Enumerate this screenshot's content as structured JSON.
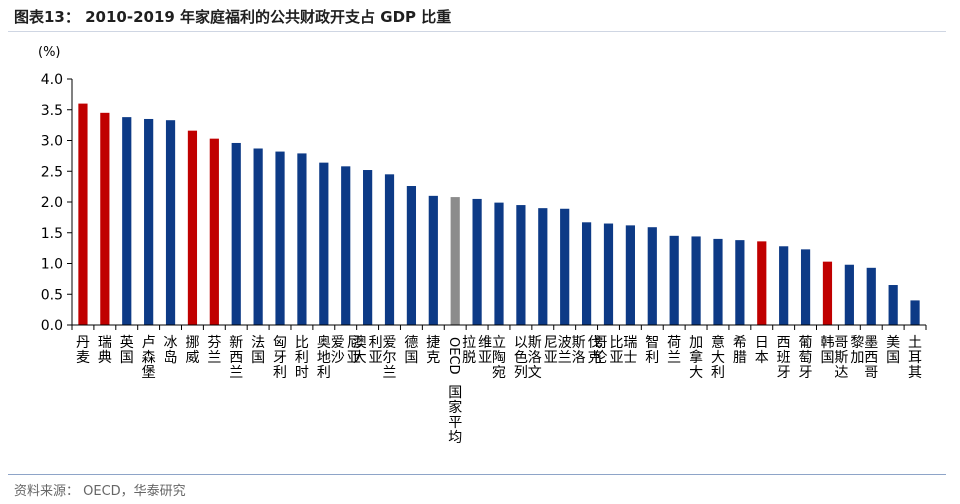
{
  "figure": {
    "title": "图表13： 2010-2019 年家庭福利的公共财政开支占 GDP 比重",
    "source": "资料来源： OECD，华泰研究"
  },
  "colors": {
    "blue": "#0d3a86",
    "red": "#c00000",
    "gray": "#8c8c8c",
    "axis": "#000000"
  },
  "chart_data": {
    "type": "bar",
    "ylabel": "(%)",
    "ylim": [
      0,
      4.0
    ],
    "ytick_step": 0.5,
    "yticks": [
      "0.0",
      "0.5",
      "1.0",
      "1.5",
      "2.0",
      "2.5",
      "3.0",
      "3.5",
      "4.0"
    ],
    "grid": false,
    "categories": [
      "丹麦",
      "瑞典",
      "英国",
      "卢森堡",
      "冰岛",
      "挪威",
      "芬兰",
      "新西兰",
      "法国",
      "匈牙利",
      "比利时",
      "奥地利",
      "爱沙尼亚",
      "澳大利亚",
      "爱尔兰",
      "德国",
      "捷克",
      "OECD国家平均",
      "拉脱维亚",
      "立陶宛",
      "以色列",
      "斯洛文尼亚",
      "波兰",
      "斯洛伐克",
      "哥伦比亚",
      "瑞士",
      "智利",
      "荷兰",
      "加拿大",
      "意大利",
      "希腊",
      "日本",
      "西班牙",
      "葡萄牙",
      "韩国",
      "哥斯达黎加",
      "墨西哥",
      "美国",
      "土耳其"
    ],
    "values": [
      3.6,
      3.45,
      3.38,
      3.35,
      3.33,
      3.16,
      3.03,
      2.96,
      2.87,
      2.82,
      2.79,
      2.64,
      2.58,
      2.52,
      2.45,
      2.26,
      2.1,
      2.08,
      2.05,
      1.99,
      1.95,
      1.9,
      1.89,
      1.67,
      1.65,
      1.62,
      1.59,
      1.45,
      1.44,
      1.4,
      1.38,
      1.36,
      1.28,
      1.23,
      1.03,
      0.98,
      0.93,
      0.65,
      0.4
    ],
    "bar_colors": [
      "red",
      "red",
      "blue",
      "blue",
      "blue",
      "red",
      "red",
      "blue",
      "blue",
      "blue",
      "blue",
      "blue",
      "blue",
      "blue",
      "blue",
      "blue",
      "blue",
      "gray",
      "blue",
      "blue",
      "blue",
      "blue",
      "blue",
      "blue",
      "blue",
      "blue",
      "blue",
      "blue",
      "blue",
      "blue",
      "blue",
      "red",
      "blue",
      "blue",
      "red",
      "blue",
      "blue",
      "blue",
      "blue"
    ]
  }
}
